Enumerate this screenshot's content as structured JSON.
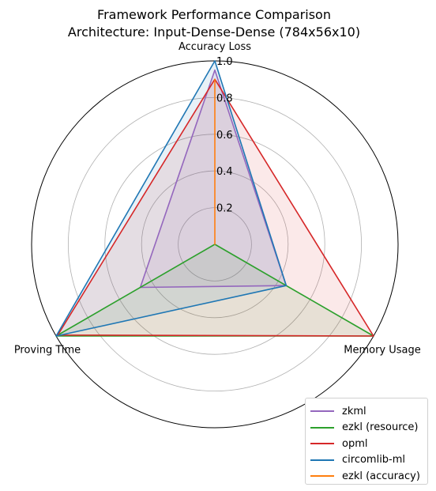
{
  "chart_data": {
    "type": "radar",
    "title": "Framework Performance Comparison",
    "subtitle": "Architecture: Input-Dense-Dense (784x56x10)",
    "axes": [
      "Accuracy Loss",
      "Memory Usage",
      "Proving Time"
    ],
    "rlim": [
      0,
      1.0
    ],
    "radial_ticks": [
      "0.2",
      "0.4",
      "0.6",
      "0.8",
      "1.0"
    ],
    "grid": true,
    "legend_position": "bottom-right",
    "series": [
      {
        "name": "zkml",
        "color": "#9467bd",
        "values": [
          0.95,
          0.45,
          0.47
        ]
      },
      {
        "name": "ezkl (resource)",
        "color": "#2ca02c",
        "values": [
          0.0,
          1.0,
          1.0
        ]
      },
      {
        "name": "opml",
        "color": "#d62728",
        "values": [
          0.9,
          1.0,
          0.99
        ]
      },
      {
        "name": "circomlib-ml",
        "color": "#1f77b4",
        "values": [
          1.0,
          0.45,
          1.0
        ]
      },
      {
        "name": "ezkl (accuracy)",
        "color": "#ff7f0e",
        "values": [
          0.9,
          0.0,
          0.0
        ]
      }
    ]
  }
}
